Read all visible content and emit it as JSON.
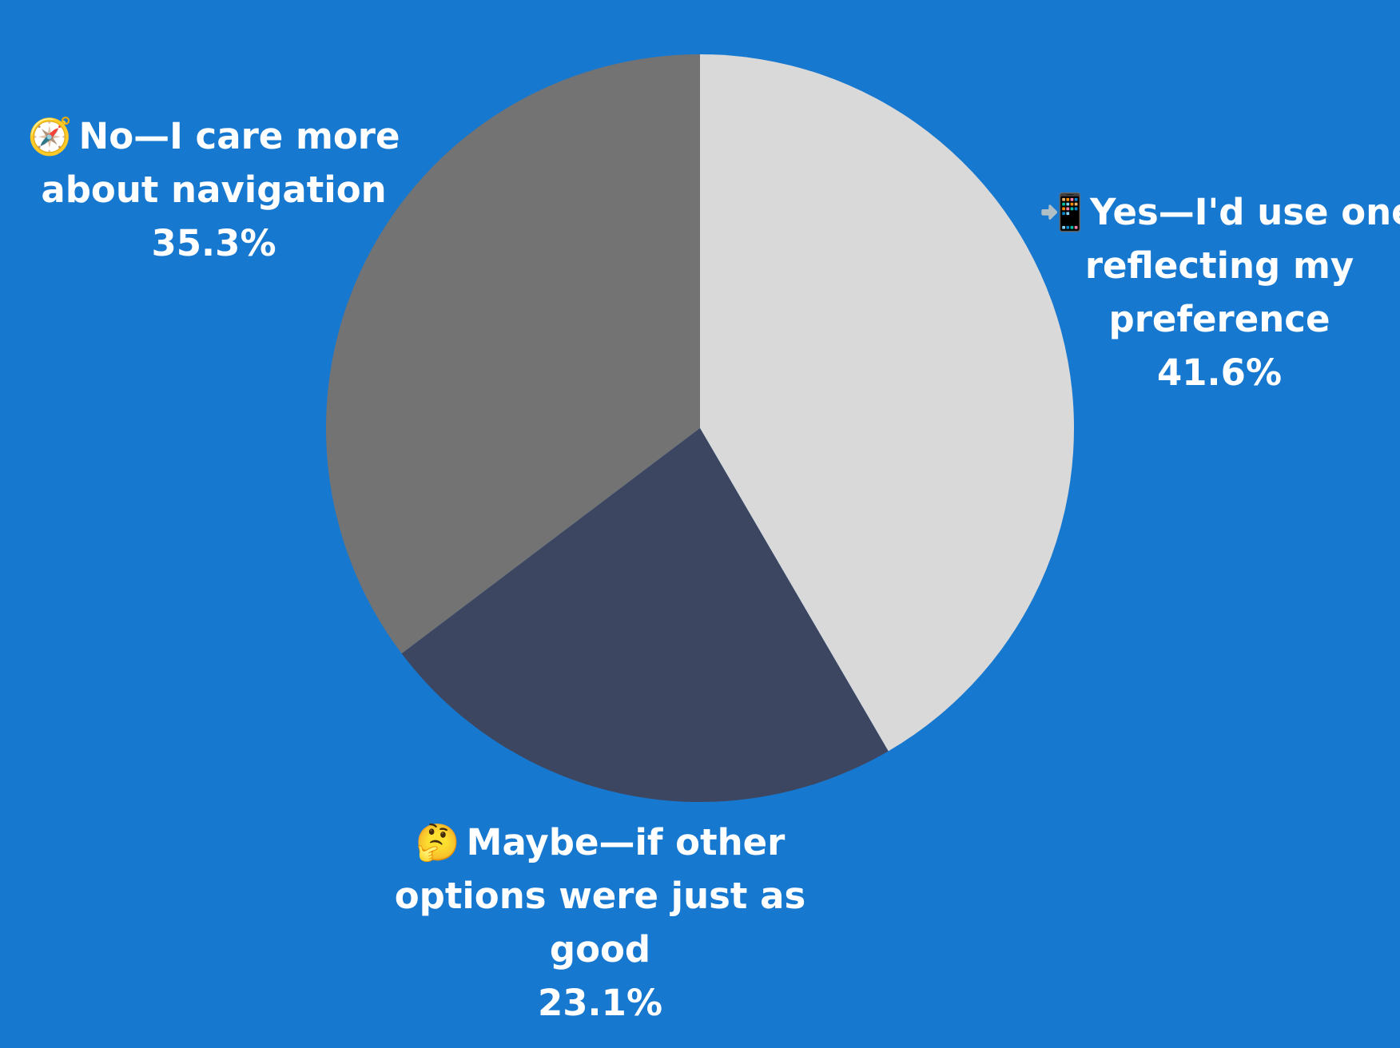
{
  "colors": {
    "background": "#1778d0",
    "label_text": "#ffffff"
  },
  "chart_data": {
    "type": "pie",
    "start_angle_deg": 0,
    "direction": "clockwise",
    "slices": [
      {
        "id": "yes",
        "icon": "mobile-phone-arrow-icon",
        "glyph": "📲",
        "label_lines": [
          "Yes—I'd use one",
          "reflecting my",
          "preference"
        ],
        "value": 41.6,
        "value_label": "41.6%",
        "color": "#d9d9d9"
      },
      {
        "id": "maybe",
        "icon": "thinking-face-icon",
        "glyph": "🤔",
        "label_lines": [
          "Maybe—if other",
          "options were just as",
          "good"
        ],
        "value": 23.1,
        "value_label": "23.1%",
        "color": "#3d4660"
      },
      {
        "id": "no",
        "icon": "compass-icon",
        "glyph": "🧭",
        "label_lines": [
          "No—I care more",
          "about navigation"
        ],
        "value": 35.3,
        "value_label": "35.3%",
        "color": "#737373"
      }
    ]
  }
}
